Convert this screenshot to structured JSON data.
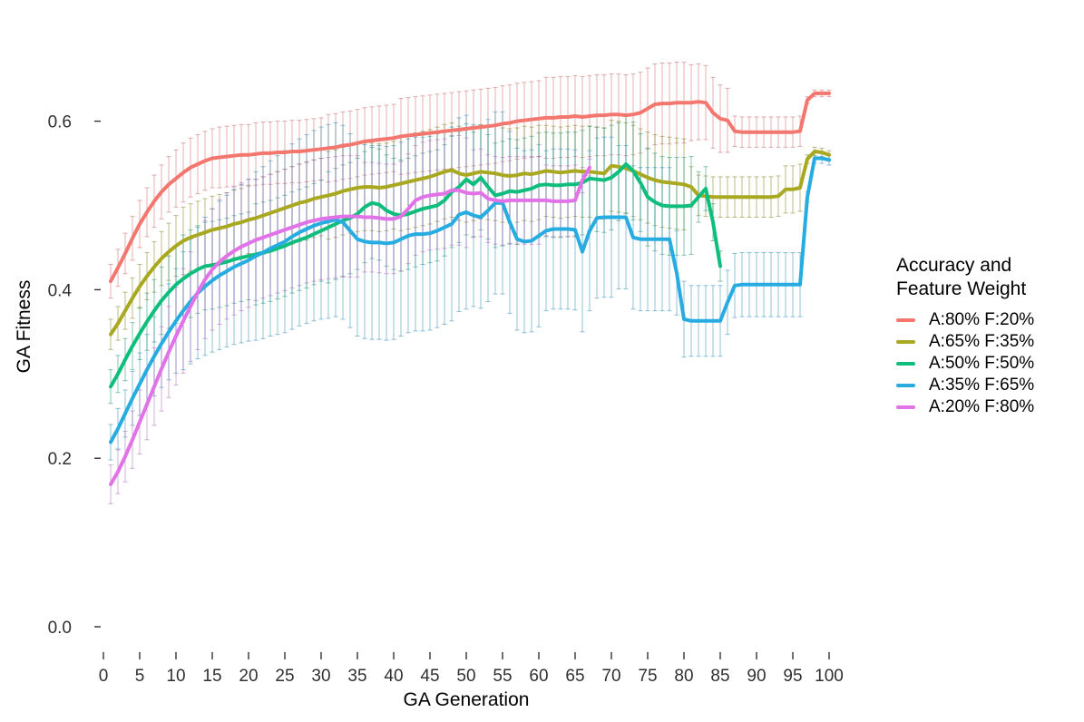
{
  "chart_data": {
    "type": "line",
    "title": "",
    "xlabel": "GA Generation",
    "ylabel": "GA Fitness",
    "xlim": [
      0,
      104
    ],
    "ylim": [
      0,
      0.68
    ],
    "grid": false,
    "error_bars": true,
    "x_ticks": [
      0,
      5,
      10,
      15,
      20,
      25,
      30,
      35,
      40,
      45,
      50,
      55,
      60,
      65,
      70,
      75,
      80,
      85,
      90,
      95,
      100
    ],
    "y_ticks": [
      0.0,
      0.2,
      0.4,
      0.6
    ],
    "legend": {
      "title_line1": "Accuracy and",
      "title_line2": "Feature Weight",
      "position": "right"
    },
    "series": [
      {
        "name": "A:80% F:20%",
        "color": "#F3776F",
        "bar_color": "#C95F5F",
        "start_gen": 1,
        "values": [
          0.41,
          0.426,
          0.443,
          0.461,
          0.478,
          0.492,
          0.505,
          0.516,
          0.525,
          0.532,
          0.539,
          0.545,
          0.549,
          0.553,
          0.556,
          0.557,
          0.558,
          0.559,
          0.56,
          0.56,
          0.561,
          0.562,
          0.562,
          0.563,
          0.563,
          0.564,
          0.564,
          0.565,
          0.566,
          0.567,
          0.568,
          0.569,
          0.571,
          0.572,
          0.574,
          0.576,
          0.577,
          0.578,
          0.579,
          0.58,
          0.582,
          0.583,
          0.584,
          0.585,
          0.586,
          0.587,
          0.588,
          0.589,
          0.59,
          0.591,
          0.592,
          0.593,
          0.594,
          0.595,
          0.597,
          0.598,
          0.6,
          0.601,
          0.602,
          0.603,
          0.604,
          0.604,
          0.605,
          0.605,
          0.606,
          0.605,
          0.606,
          0.607,
          0.607,
          0.608,
          0.608,
          0.607,
          0.608,
          0.61,
          0.615,
          0.62,
          0.621,
          0.621,
          0.622,
          0.622,
          0.622,
          0.623,
          0.622,
          0.61,
          0.603,
          0.601,
          0.588,
          0.587,
          0.587,
          0.587,
          0.587,
          0.587,
          0.587,
          0.587,
          0.587,
          0.588,
          0.625,
          0.633,
          0.633,
          0.633
        ],
        "err": [
          0.02,
          0.022,
          0.024,
          0.026,
          0.028,
          0.029,
          0.031,
          0.032,
          0.033,
          0.034,
          0.035,
          0.035,
          0.035,
          0.035,
          0.035,
          0.036,
          0.036,
          0.036,
          0.036,
          0.036,
          0.037,
          0.037,
          0.037,
          0.037,
          0.037,
          0.037,
          0.037,
          0.037,
          0.037,
          0.037,
          0.04,
          0.04,
          0.04,
          0.04,
          0.04,
          0.04,
          0.04,
          0.04,
          0.04,
          0.04,
          0.045,
          0.045,
          0.045,
          0.045,
          0.045,
          0.045,
          0.045,
          0.045,
          0.045,
          0.045,
          0.045,
          0.045,
          0.045,
          0.045,
          0.045,
          0.045,
          0.045,
          0.045,
          0.045,
          0.045,
          0.048,
          0.048,
          0.048,
          0.048,
          0.048,
          0.048,
          0.048,
          0.048,
          0.048,
          0.048,
          0.048,
          0.048,
          0.048,
          0.048,
          0.048,
          0.048,
          0.048,
          0.048,
          0.048,
          0.048,
          0.045,
          0.045,
          0.044,
          0.042,
          0.04,
          0.038,
          0.018,
          0.018,
          0.018,
          0.018,
          0.018,
          0.018,
          0.018,
          0.018,
          0.018,
          0.018,
          0.004,
          0.004,
          0.004,
          0.004
        ]
      },
      {
        "name": "A:65% F:35%",
        "color": "#A9A821",
        "bar_color": "#7E7E14",
        "start_gen": 1,
        "values": [
          0.347,
          0.36,
          0.375,
          0.39,
          0.404,
          0.416,
          0.427,
          0.437,
          0.445,
          0.452,
          0.458,
          0.462,
          0.465,
          0.468,
          0.471,
          0.473,
          0.475,
          0.478,
          0.48,
          0.483,
          0.485,
          0.488,
          0.491,
          0.494,
          0.497,
          0.5,
          0.503,
          0.505,
          0.508,
          0.51,
          0.512,
          0.514,
          0.517,
          0.519,
          0.521,
          0.522,
          0.522,
          0.521,
          0.522,
          0.524,
          0.526,
          0.528,
          0.53,
          0.532,
          0.534,
          0.537,
          0.54,
          0.542,
          0.538,
          0.536,
          0.538,
          0.54,
          0.539,
          0.538,
          0.536,
          0.535,
          0.536,
          0.538,
          0.537,
          0.539,
          0.541,
          0.54,
          0.539,
          0.54,
          0.541,
          0.54,
          0.54,
          0.539,
          0.538,
          0.547,
          0.546,
          0.544,
          0.541,
          0.537,
          0.533,
          0.53,
          0.528,
          0.527,
          0.526,
          0.525,
          0.522,
          0.512,
          0.511,
          0.51,
          0.51,
          0.51,
          0.51,
          0.51,
          0.51,
          0.51,
          0.51,
          0.51,
          0.511,
          0.519,
          0.519,
          0.521,
          0.555,
          0.564,
          0.563,
          0.56
        ],
        "err": [
          0.018,
          0.02,
          0.022,
          0.024,
          0.026,
          0.028,
          0.03,
          0.032,
          0.034,
          0.036,
          0.04,
          0.04,
          0.04,
          0.04,
          0.04,
          0.04,
          0.04,
          0.04,
          0.04,
          0.04,
          0.046,
          0.046,
          0.046,
          0.046,
          0.046,
          0.046,
          0.046,
          0.046,
          0.046,
          0.046,
          0.052,
          0.052,
          0.052,
          0.052,
          0.052,
          0.052,
          0.052,
          0.052,
          0.052,
          0.052,
          0.056,
          0.056,
          0.056,
          0.056,
          0.056,
          0.056,
          0.056,
          0.056,
          0.056,
          0.056,
          0.056,
          0.056,
          0.056,
          0.056,
          0.056,
          0.056,
          0.056,
          0.056,
          0.056,
          0.056,
          0.054,
          0.054,
          0.054,
          0.054,
          0.054,
          0.054,
          0.054,
          0.054,
          0.054,
          0.054,
          0.054,
          0.054,
          0.054,
          0.054,
          0.054,
          0.054,
          0.054,
          0.054,
          0.054,
          0.054,
          0.024,
          0.024,
          0.024,
          0.024,
          0.024,
          0.024,
          0.024,
          0.024,
          0.024,
          0.024,
          0.024,
          0.024,
          0.024,
          0.028,
          0.028,
          0.028,
          0.005,
          0.005,
          0.005,
          0.005
        ]
      },
      {
        "name": "A:50% F:50%",
        "color": "#0FBE7C",
        "bar_color": "#0E8F60",
        "start_gen": 1,
        "values": [
          0.285,
          0.3,
          0.317,
          0.333,
          0.348,
          0.362,
          0.375,
          0.387,
          0.397,
          0.406,
          0.413,
          0.419,
          0.424,
          0.428,
          0.429,
          0.431,
          0.433,
          0.436,
          0.438,
          0.44,
          0.442,
          0.444,
          0.446,
          0.449,
          0.452,
          0.456,
          0.459,
          0.462,
          0.466,
          0.47,
          0.474,
          0.478,
          0.482,
          0.485,
          0.49,
          0.498,
          0.503,
          0.501,
          0.494,
          0.49,
          0.488,
          0.49,
          0.493,
          0.496,
          0.498,
          0.5,
          0.506,
          0.516,
          0.522,
          0.531,
          0.525,
          0.533,
          0.522,
          0.512,
          0.514,
          0.517,
          0.516,
          0.518,
          0.52,
          0.524,
          0.525,
          0.524,
          0.524,
          0.525,
          0.525,
          0.527,
          0.532,
          0.531,
          0.53,
          0.533,
          0.54,
          0.549,
          0.541,
          0.527,
          0.51,
          0.504,
          0.5,
          0.499,
          0.499,
          0.499,
          0.5,
          0.51,
          0.52,
          0.48,
          0.428
        ],
        "err": [
          0.02,
          0.022,
          0.025,
          0.028,
          0.031,
          0.034,
          0.037,
          0.04,
          0.043,
          0.046,
          0.052,
          0.052,
          0.052,
          0.052,
          0.052,
          0.052,
          0.052,
          0.052,
          0.052,
          0.052,
          0.06,
          0.06,
          0.06,
          0.06,
          0.06,
          0.06,
          0.06,
          0.06,
          0.06,
          0.06,
          0.066,
          0.066,
          0.066,
          0.066,
          0.066,
          0.066,
          0.066,
          0.066,
          0.066,
          0.066,
          0.066,
          0.066,
          0.066,
          0.066,
          0.066,
          0.066,
          0.066,
          0.066,
          0.066,
          0.066,
          0.062,
          0.062,
          0.062,
          0.062,
          0.062,
          0.062,
          0.062,
          0.062,
          0.062,
          0.062,
          0.062,
          0.062,
          0.062,
          0.062,
          0.062,
          0.062,
          0.062,
          0.062,
          0.062,
          0.062,
          0.058,
          0.058,
          0.058,
          0.058,
          0.058,
          0.058,
          0.058,
          0.058,
          0.058,
          0.058,
          0.058,
          0.03,
          0.026,
          0.022,
          0.018
        ]
      },
      {
        "name": "A:35% F:65%",
        "color": "#27ACE2",
        "bar_color": "#1F86B5",
        "start_gen": 1,
        "values": [
          0.219,
          0.235,
          0.253,
          0.271,
          0.288,
          0.305,
          0.321,
          0.336,
          0.35,
          0.363,
          0.375,
          0.386,
          0.396,
          0.404,
          0.411,
          0.417,
          0.422,
          0.427,
          0.431,
          0.435,
          0.44,
          0.444,
          0.449,
          0.453,
          0.457,
          0.463,
          0.468,
          0.472,
          0.476,
          0.479,
          0.481,
          0.483,
          0.48,
          0.47,
          0.46,
          0.457,
          0.456,
          0.456,
          0.455,
          0.456,
          0.46,
          0.464,
          0.466,
          0.466,
          0.467,
          0.47,
          0.474,
          0.478,
          0.489,
          0.492,
          0.488,
          0.486,
          0.494,
          0.503,
          0.503,
          0.48,
          0.46,
          0.457,
          0.458,
          0.464,
          0.47,
          0.472,
          0.472,
          0.472,
          0.471,
          0.445,
          0.47,
          0.485,
          0.486,
          0.486,
          0.486,
          0.486,
          0.462,
          0.46,
          0.46,
          0.46,
          0.46,
          0.46,
          0.42,
          0.365,
          0.363,
          0.363,
          0.363,
          0.363,
          0.363,
          0.385,
          0.405,
          0.406,
          0.406,
          0.406,
          0.406,
          0.406,
          0.406,
          0.406,
          0.406,
          0.406,
          0.51,
          0.556,
          0.556,
          0.554
        ],
        "err": [
          0.021,
          0.024,
          0.028,
          0.032,
          0.037,
          0.042,
          0.047,
          0.052,
          0.057,
          0.062,
          0.07,
          0.074,
          0.078,
          0.082,
          0.085,
          0.088,
          0.09,
          0.092,
          0.094,
          0.096,
          0.1,
          0.102,
          0.104,
          0.106,
          0.108,
          0.11,
          0.111,
          0.112,
          0.113,
          0.114,
          0.115,
          0.115,
          0.115,
          0.115,
          0.115,
          0.115,
          0.115,
          0.115,
          0.115,
          0.115,
          0.115,
          0.115,
          0.115,
          0.115,
          0.115,
          0.115,
          0.115,
          0.115,
          0.115,
          0.115,
          0.108,
          0.108,
          0.108,
          0.108,
          0.108,
          0.108,
          0.108,
          0.108,
          0.108,
          0.108,
          0.095,
          0.095,
          0.095,
          0.095,
          0.095,
          0.095,
          0.095,
          0.095,
          0.095,
          0.095,
          0.085,
          0.085,
          0.085,
          0.085,
          0.085,
          0.085,
          0.085,
          0.085,
          0.05,
          0.045,
          0.042,
          0.042,
          0.042,
          0.042,
          0.042,
          0.038,
          0.038,
          0.038,
          0.038,
          0.038,
          0.038,
          0.038,
          0.038,
          0.038,
          0.038,
          0.038,
          0.006,
          0.006,
          0.006,
          0.006
        ]
      },
      {
        "name": "A:20% F:80%",
        "color": "#E272E8",
        "bar_color": "#AE5BB8",
        "start_gen": 1,
        "values": [
          0.169,
          0.184,
          0.202,
          0.222,
          0.243,
          0.264,
          0.285,
          0.306,
          0.326,
          0.345,
          0.363,
          0.38,
          0.397,
          0.412,
          0.424,
          0.433,
          0.44,
          0.446,
          0.451,
          0.455,
          0.459,
          0.462,
          0.465,
          0.468,
          0.471,
          0.474,
          0.477,
          0.48,
          0.482,
          0.484,
          0.485,
          0.486,
          0.487,
          0.487,
          0.487,
          0.486,
          0.486,
          0.485,
          0.484,
          0.484,
          0.487,
          0.496,
          0.506,
          0.51,
          0.512,
          0.513,
          0.514,
          0.518,
          0.518,
          0.515,
          0.514,
          0.515,
          0.508,
          0.506,
          0.505,
          0.506,
          0.506,
          0.506,
          0.506,
          0.506,
          0.506,
          0.505,
          0.505,
          0.505,
          0.506,
          0.53,
          0.545
        ],
        "err": [
          0.023,
          0.026,
          0.03,
          0.034,
          0.038,
          0.042,
          0.046,
          0.05,
          0.054,
          0.058,
          0.062,
          0.065,
          0.068,
          0.07,
          0.072,
          0.074,
          0.075,
          0.076,
          0.076,
          0.076,
          0.072,
          0.072,
          0.072,
          0.072,
          0.072,
          0.072,
          0.072,
          0.072,
          0.072,
          0.072,
          0.072,
          0.072,
          0.072,
          0.072,
          0.072,
          0.065,
          0.065,
          0.065,
          0.065,
          0.065,
          0.065,
          0.065,
          0.065,
          0.065,
          0.065,
          0.065,
          0.065,
          0.065,
          0.065,
          0.065,
          0.052,
          0.052,
          0.052,
          0.052,
          0.052,
          0.052,
          0.052,
          0.052,
          0.052,
          0.052,
          0.042,
          0.042,
          0.042,
          0.042,
          0.042,
          0.015,
          0.01
        ]
      }
    ]
  }
}
